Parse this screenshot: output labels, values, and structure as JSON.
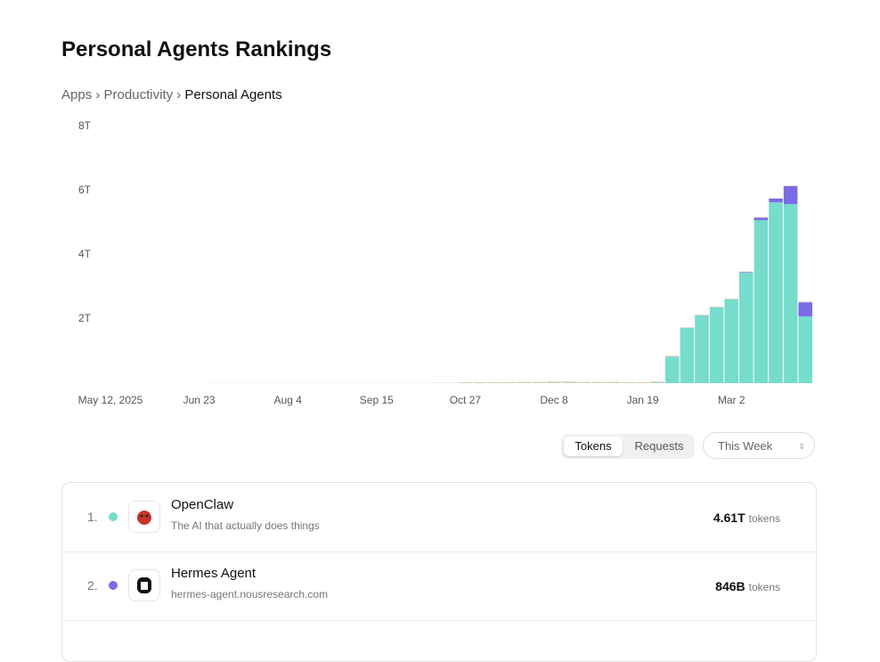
{
  "header": {
    "title": "Personal Agents Rankings"
  },
  "breadcrumb": [
    "Apps",
    "Productivity",
    "Personal Agents"
  ],
  "chart_data": {
    "type": "bar",
    "stacked": true,
    "categories": [
      "May 12, 2025",
      null,
      null,
      null,
      null,
      null,
      "Jun 23",
      null,
      null,
      null,
      null,
      null,
      "Aug 4",
      null,
      null,
      null,
      null,
      null,
      "Sep 15",
      null,
      null,
      null,
      null,
      null,
      "Oct 27",
      null,
      null,
      null,
      null,
      null,
      "Dec 8",
      null,
      null,
      null,
      null,
      null,
      "Jan 19",
      null,
      null,
      null,
      null,
      null,
      "Mar 2",
      null,
      null,
      null,
      null,
      null
    ],
    "series": [
      {
        "color": "#76dccb",
        "values": [
          0,
          0,
          0,
          0,
          0,
          0,
          0,
          0,
          0,
          0,
          0,
          0,
          0,
          0,
          0,
          0,
          0,
          0,
          0,
          0,
          0,
          0,
          0,
          0,
          0,
          0,
          0,
          0,
          0,
          0,
          0,
          0,
          0,
          0,
          0,
          0,
          0,
          0.02,
          0.83,
          1.72,
          2.11,
          2.36,
          2.61,
          3.44,
          5.08,
          5.64,
          5.58,
          2.08
        ]
      },
      {
        "color": "#7b6be6",
        "values": [
          0,
          0,
          0,
          0,
          0,
          0,
          0,
          0,
          0,
          0,
          0,
          0,
          0,
          0,
          0,
          0,
          0,
          0,
          0,
          0,
          0,
          0,
          0,
          0,
          0,
          0,
          0,
          0,
          0,
          0,
          0,
          0,
          0,
          0,
          0,
          0,
          0,
          0,
          0,
          0,
          0,
          0,
          0,
          0.02,
          0.08,
          0.11,
          0.56,
          0.44
        ]
      },
      {
        "color": "#d8cfb8",
        "values": [
          0,
          0,
          0,
          0,
          0,
          0,
          0,
          0.005,
          0.005,
          0.005,
          0.005,
          0.005,
          0.005,
          0.005,
          0.005,
          0.005,
          0.005,
          0.005,
          0.005,
          0.005,
          0.005,
          0.005,
          0.01,
          0.01,
          0.03,
          0.03,
          0.03,
          0.03,
          0.04,
          0.04,
          0.05,
          0.05,
          0.04,
          0.04,
          0.04,
          0.03,
          0.03,
          0.03,
          0.02,
          0.02,
          0.02,
          0.02,
          0.02,
          0.02,
          0.02,
          0.02,
          0.02,
          0.02
        ]
      }
    ],
    "ylim": [
      0,
      8
    ],
    "yticks": [
      {
        "value": 2,
        "label": "2T"
      },
      {
        "value": 4,
        "label": "4T"
      },
      {
        "value": 6,
        "label": "6T"
      },
      {
        "value": 8,
        "label": "8T"
      }
    ]
  },
  "controls": {
    "metrics": [
      "Tokens",
      "Requests"
    ],
    "period": "This Week"
  },
  "rankings": [
    {
      "rank": "1.",
      "color": "#76dccb",
      "name": "OpenClaw",
      "description": "The AI that actually does things",
      "value": "4.61T",
      "unit": "tokens"
    },
    {
      "rank": "2.",
      "color": "#7b6be6",
      "name": "Hermes Agent",
      "description": "hermes-agent.nousresearch.com",
      "value": "846B",
      "unit": "tokens"
    }
  ]
}
